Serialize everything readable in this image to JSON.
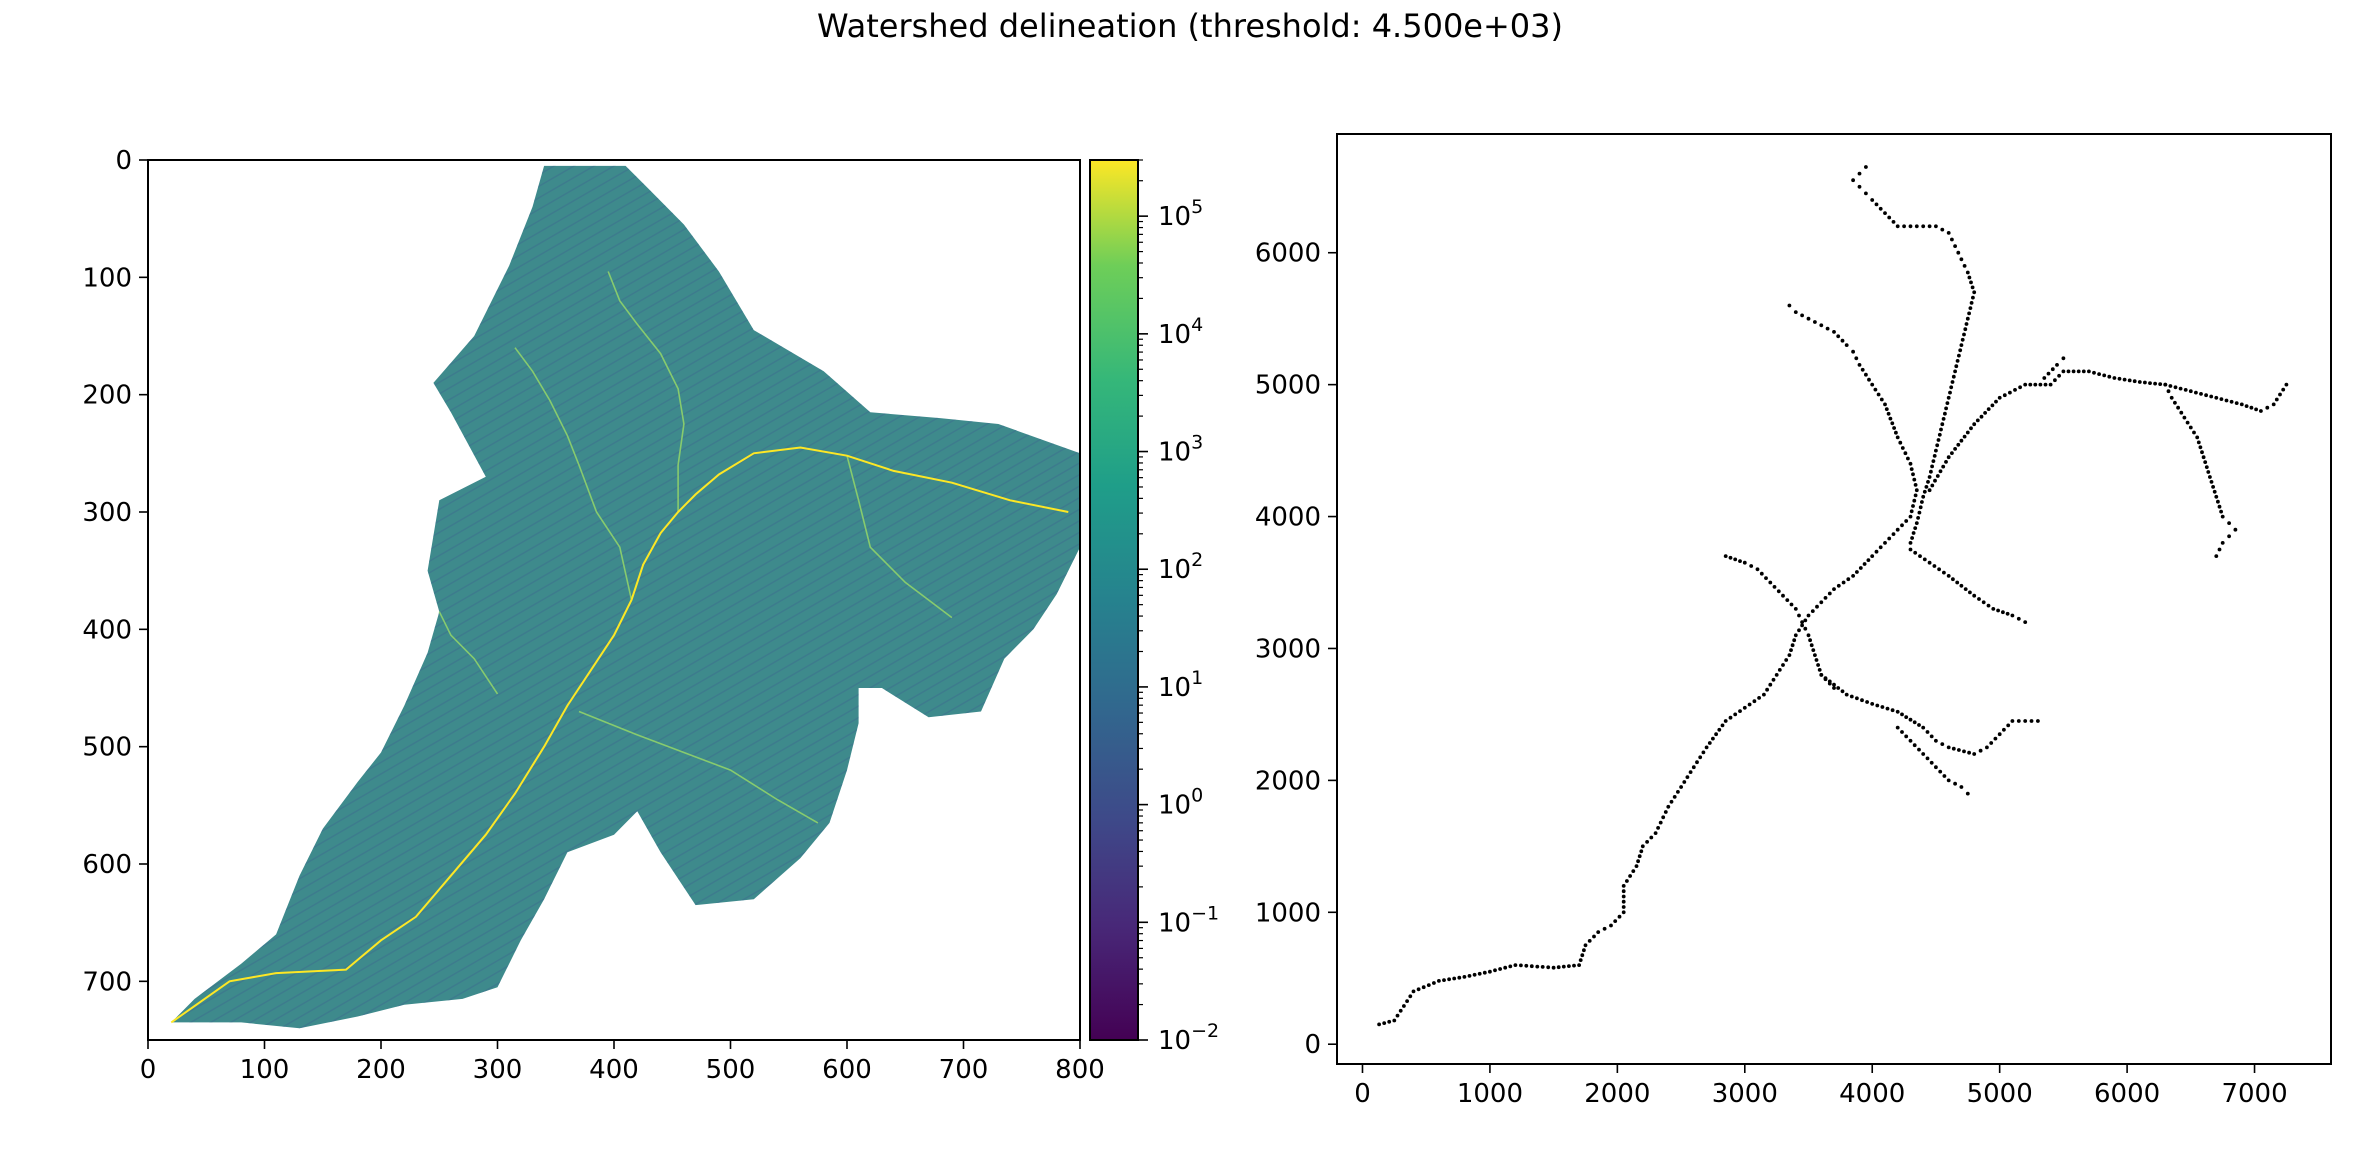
{
  "figure": {
    "title": "Watershed delineation (threshold: 4.500e+03)"
  },
  "chart_data": [
    {
      "type": "heatmap",
      "title": "",
      "xlabel": "",
      "ylabel": "",
      "xlim": [
        0,
        800
      ],
      "ylim": [
        750,
        0
      ],
      "x_ticks": [
        0,
        100,
        200,
        300,
        400,
        500,
        600,
        700,
        800
      ],
      "y_ticks": [
        0,
        100,
        200,
        300,
        400,
        500,
        600,
        700
      ],
      "colormap": "viridis",
      "color_scale": "log",
      "colorbar": {
        "range": [
          0.01,
          300000
        ],
        "tick_labels": [
          {
            "base": "10",
            "exp": "5",
            "value": 100000
          },
          {
            "base": "10",
            "exp": "4",
            "value": 10000
          },
          {
            "base": "10",
            "exp": "3",
            "value": 1000
          },
          {
            "base": "10",
            "exp": "2",
            "value": 100
          },
          {
            "base": "10",
            "exp": "1",
            "value": 10
          },
          {
            "base": "10",
            "exp": "0",
            "value": 1
          },
          {
            "base": "10",
            "exp": "−1",
            "value": 0.1
          },
          {
            "base": "10",
            "exp": "−2",
            "value": 0.01
          }
        ]
      },
      "background_color": "#3e8a8c",
      "catchment_outline": [
        [
          340,
          5
        ],
        [
          410,
          5
        ],
        [
          430,
          25
        ],
        [
          460,
          55
        ],
        [
          490,
          95
        ],
        [
          520,
          145
        ],
        [
          580,
          180
        ],
        [
          620,
          215
        ],
        [
          680,
          220
        ],
        [
          730,
          225
        ],
        [
          800,
          250
        ],
        [
          800,
          330
        ],
        [
          780,
          370
        ],
        [
          760,
          400
        ],
        [
          735,
          425
        ],
        [
          715,
          470
        ],
        [
          670,
          475
        ],
        [
          630,
          450
        ],
        [
          610,
          450
        ],
        [
          610,
          480
        ],
        [
          600,
          520
        ],
        [
          585,
          565
        ],
        [
          560,
          595
        ],
        [
          520,
          630
        ],
        [
          470,
          635
        ],
        [
          440,
          590
        ],
        [
          420,
          555
        ],
        [
          400,
          575
        ],
        [
          360,
          590
        ],
        [
          340,
          630
        ],
        [
          320,
          665
        ],
        [
          300,
          705
        ],
        [
          270,
          715
        ],
        [
          220,
          720
        ],
        [
          180,
          730
        ],
        [
          130,
          740
        ],
        [
          80,
          735
        ],
        [
          20,
          735
        ],
        [
          40,
          715
        ],
        [
          80,
          685
        ],
        [
          110,
          660
        ],
        [
          130,
          610
        ],
        [
          150,
          570
        ],
        [
          180,
          530
        ],
        [
          200,
          505
        ],
        [
          220,
          465
        ],
        [
          240,
          420
        ],
        [
          250,
          385
        ],
        [
          240,
          350
        ],
        [
          250,
          290
        ],
        [
          290,
          270
        ],
        [
          260,
          215
        ],
        [
          245,
          190
        ],
        [
          280,
          150
        ],
        [
          310,
          90
        ],
        [
          330,
          40
        ]
      ],
      "main_channel": [
        [
          20,
          735
        ],
        [
          70,
          700
        ],
        [
          110,
          693
        ],
        [
          170,
          690
        ],
        [
          200,
          665
        ],
        [
          230,
          645
        ],
        [
          260,
          610
        ],
        [
          290,
          575
        ],
        [
          315,
          540
        ],
        [
          340,
          500
        ],
        [
          360,
          465
        ],
        [
          380,
          435
        ],
        [
          400,
          405
        ],
        [
          415,
          375
        ],
        [
          425,
          345
        ],
        [
          440,
          318
        ],
        [
          455,
          300
        ],
        [
          470,
          285
        ],
        [
          490,
          268
        ],
        [
          520,
          250
        ],
        [
          560,
          245
        ],
        [
          600,
          252
        ],
        [
          640,
          265
        ],
        [
          690,
          275
        ],
        [
          740,
          290
        ],
        [
          790,
          300
        ]
      ],
      "tributaries": [
        [
          [
            415,
            375
          ],
          [
            405,
            330
          ],
          [
            385,
            300
          ],
          [
            370,
            260
          ],
          [
            360,
            235
          ],
          [
            345,
            205
          ],
          [
            330,
            180
          ],
          [
            315,
            160
          ]
        ],
        [
          [
            455,
            300
          ],
          [
            455,
            260
          ],
          [
            460,
            225
          ],
          [
            455,
            195
          ],
          [
            440,
            165
          ],
          [
            420,
            140
          ],
          [
            405,
            120
          ],
          [
            395,
            95
          ]
        ],
        [
          [
            370,
            470
          ],
          [
            420,
            490
          ],
          [
            460,
            505
          ],
          [
            500,
            520
          ],
          [
            540,
            545
          ],
          [
            575,
            565
          ]
        ],
        [
          [
            600,
            252
          ],
          [
            610,
            290
          ],
          [
            620,
            330
          ],
          [
            650,
            360
          ],
          [
            690,
            390
          ]
        ],
        [
          [
            300,
            455
          ],
          [
            280,
            425
          ],
          [
            260,
            405
          ],
          [
            250,
            385
          ]
        ]
      ]
    },
    {
      "type": "scatter",
      "title": "",
      "xlabel": "",
      "ylabel": "",
      "xlim": [
        -200,
        7600
      ],
      "ylim": [
        -150,
        6900
      ],
      "x_ticks": [
        0,
        1000,
        2000,
        3000,
        4000,
        5000,
        6000,
        7000
      ],
      "y_ticks": [
        0,
        1000,
        2000,
        3000,
        4000,
        5000,
        6000
      ],
      "marker_color": "#000000",
      "series": [
        {
          "x": [
            130,
            250,
            400,
            600,
            800,
            1000,
            1200,
            1500,
            1700,
            1750,
            1850,
            1950,
            2050,
            2050,
            2150,
            2200,
            2300,
            2400,
            2500,
            2600,
            2700,
            2850,
            3000,
            3150,
            3250,
            3350,
            3400,
            3500,
            3600,
            3700,
            3850,
            4000,
            4100,
            4200,
            4300,
            4350,
            4300,
            4200,
            4100,
            4000,
            3900,
            3850,
            3800,
            3700,
            3600,
            3500,
            3400,
            3350
          ],
          "y": [
            150,
            180,
            400,
            480,
            510,
            550,
            600,
            580,
            600,
            750,
            850,
            900,
            1000,
            1200,
            1350,
            1500,
            1600,
            1800,
            1950,
            2100,
            2250,
            2450,
            2550,
            2650,
            2800,
            2950,
            3100,
            3250,
            3350,
            3450,
            3550,
            3700,
            3800,
            3900,
            4000,
            4200,
            4400,
            4600,
            4850,
            5000,
            5150,
            5250,
            5300,
            5400,
            5450,
            5500,
            5550,
            5600
          ]
        },
        {
          "x": [
            4300,
            4350,
            4400,
            4450,
            4500,
            4550,
            4600,
            4650,
            4700,
            4750,
            4800,
            4750,
            4700,
            4650,
            4600,
            4500,
            4400,
            4300,
            4200,
            4100,
            4000,
            3950,
            3900,
            3850,
            3900,
            3950
          ],
          "y": [
            3800,
            3950,
            4150,
            4300,
            4500,
            4700,
            4900,
            5100,
            5300,
            5500,
            5700,
            5850,
            5950,
            6050,
            6150,
            6200,
            6200,
            6200,
            6200,
            6300,
            6400,
            6450,
            6500,
            6550,
            6600,
            6650
          ]
        },
        {
          "x": [
            4450,
            4600,
            4800,
            5000,
            5200,
            5400,
            5500,
            5700,
            5900,
            6100,
            6300,
            6500,
            6700,
            6900,
            7050,
            7150,
            7250
          ],
          "y": [
            4200,
            4450,
            4700,
            4900,
            5000,
            5000,
            5100,
            5100,
            5050,
            5020,
            5000,
            4950,
            4900,
            4850,
            4800,
            4850,
            5000
          ]
        },
        {
          "x": [
            6300,
            6350,
            6450,
            6550,
            6600,
            6650,
            6700,
            6750,
            6800,
            6850,
            6800,
            6750,
            6700
          ],
          "y": [
            5000,
            4900,
            4750,
            4600,
            4450,
            4300,
            4150,
            4000,
            3950,
            3900,
            3850,
            3800,
            3700
          ]
        },
        {
          "x": [
            2850,
            3000,
            3100,
            3200,
            3300,
            3400,
            3450,
            3500,
            3550,
            3600,
            3700
          ],
          "y": [
            3700,
            3650,
            3600,
            3500,
            3400,
            3300,
            3200,
            3100,
            2950,
            2800,
            2700
          ]
        },
        {
          "x": [
            3600,
            3800,
            4000,
            4200,
            4400,
            4500,
            4600,
            4800,
            4900,
            5000,
            5100,
            5200,
            5300
          ],
          "y": [
            2800,
            2650,
            2580,
            2520,
            2400,
            2300,
            2250,
            2200,
            2250,
            2350,
            2450,
            2450,
            2450
          ]
        },
        {
          "x": [
            4200,
            4300,
            4400,
            4500,
            4600,
            4700,
            4750
          ],
          "y": [
            2400,
            2300,
            2200,
            2100,
            2000,
            1950,
            1900
          ]
        },
        {
          "x": [
            4300,
            4450,
            4600,
            4800,
            4950,
            5100,
            5200
          ],
          "y": [
            3750,
            3650,
            3550,
            3400,
            3300,
            3250,
            3200
          ]
        },
        {
          "x": [
            5350,
            5450,
            5500
          ],
          "y": [
            5050,
            5150,
            5200
          ]
        }
      ]
    }
  ]
}
